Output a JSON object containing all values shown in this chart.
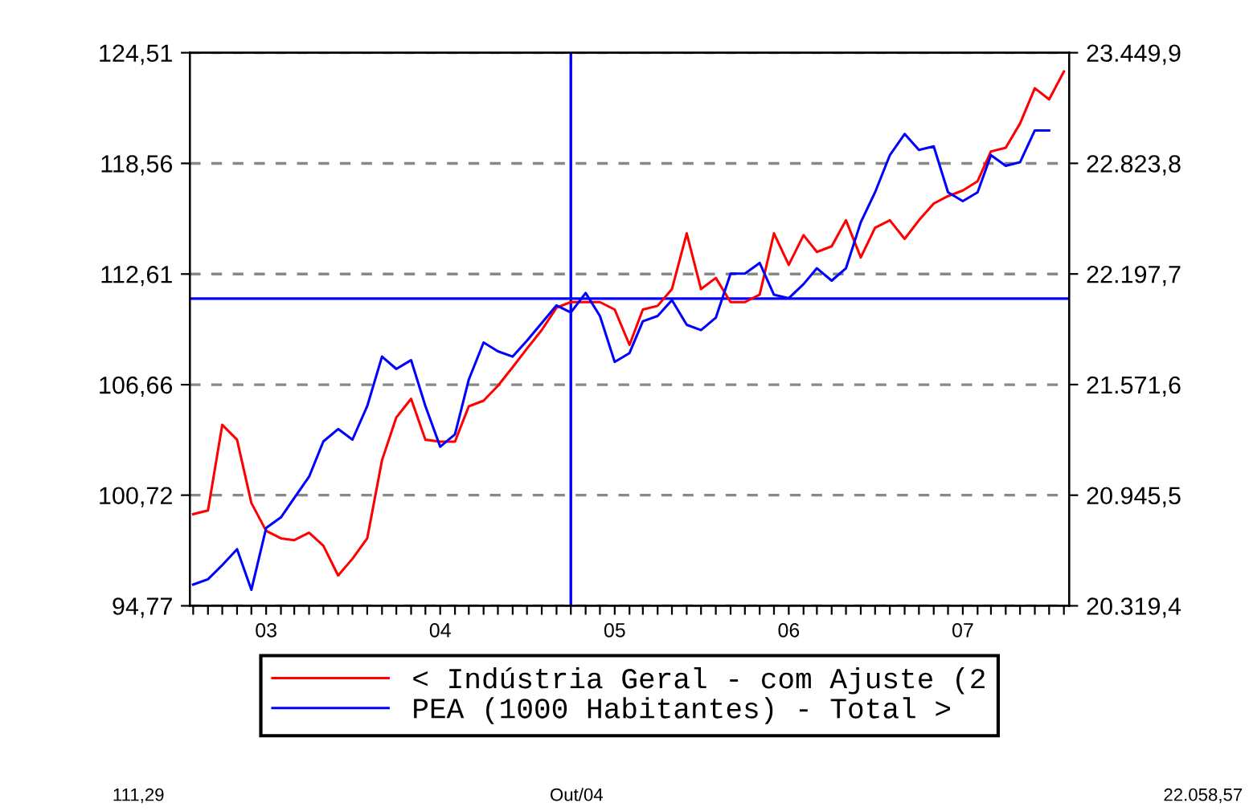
{
  "chart_data": {
    "type": "line",
    "x": [
      "2002-08",
      "2002-09",
      "2002-10",
      "2002-11",
      "2002-12",
      "2003-01",
      "2003-02",
      "2003-03",
      "2003-04",
      "2003-05",
      "2003-06",
      "2003-07",
      "2003-08",
      "2003-09",
      "2003-10",
      "2003-11",
      "2003-12",
      "2004-01",
      "2004-02",
      "2004-03",
      "2004-04",
      "2004-05",
      "2004-06",
      "2004-07",
      "2004-08",
      "2004-09",
      "2004-10",
      "2004-11",
      "2004-12",
      "2005-01",
      "2005-02",
      "2005-03",
      "2005-04",
      "2005-05",
      "2005-06",
      "2005-07",
      "2005-08",
      "2005-09",
      "2005-10",
      "2005-11",
      "2005-12",
      "2006-01",
      "2006-02",
      "2006-03",
      "2006-04",
      "2006-05",
      "2006-06",
      "2006-07",
      "2006-08",
      "2006-09",
      "2006-10",
      "2006-11",
      "2006-12",
      "2007-01",
      "2007-02",
      "2007-03",
      "2007-04",
      "2007-05",
      "2007-06",
      "2007-07",
      "2007-08"
    ],
    "series": [
      {
        "name": "< Indústria Geral - com Ajuste (2",
        "color": "#ff0000",
        "values": [
          99.7,
          99.9,
          104.5,
          103.7,
          100.3,
          98.8,
          98.4,
          98.3,
          98.7,
          98.0,
          96.4,
          97.3,
          98.4,
          102.6,
          104.9,
          105.9,
          103.7,
          103.6,
          103.6,
          105.5,
          105.8,
          106.6,
          107.6,
          108.6,
          109.6,
          110.8,
          111.1,
          111.1,
          111.1,
          110.7,
          108.8,
          110.7,
          110.9,
          111.8,
          114.8,
          111.8,
          112.4,
          111.1,
          111.1,
          111.5,
          114.8,
          113.1,
          114.7,
          113.8,
          114.1,
          115.5,
          113.5,
          115.1,
          115.5,
          114.5,
          115.5,
          116.4,
          116.8,
          117.1,
          117.6,
          119.2,
          119.4,
          120.7,
          122.6,
          122.0,
          123.5
        ]
      },
      {
        "name": "PEA (1000 Habitantes) - Total >",
        "color": "#0000ff",
        "axis": "y2",
        "values": [
          20440,
          20470,
          20550,
          20640,
          20410,
          20760,
          20820,
          20930,
          21050,
          21250,
          21320,
          21260,
          21450,
          21730,
          21660,
          21710,
          21450,
          21220,
          21290,
          21600,
          21810,
          21760,
          21730,
          21820,
          21920,
          22020,
          21980,
          22090,
          21960,
          21700,
          21750,
          21930,
          21960,
          22050,
          21910,
          21880,
          21950,
          22200,
          22200,
          22260,
          22080,
          22060,
          22140,
          22230,
          22160,
          22230,
          22490,
          22660,
          22870,
          22990,
          22900,
          22920,
          22660,
          22610,
          22660,
          22870,
          22810,
          22830,
          23010,
          23010,
          null
        ]
      }
    ],
    "xlim": [
      "2002-07-25",
      "2007-08-12"
    ],
    "xticks": [
      {
        "value": "2002-08",
        "label": null
      },
      {
        "value": "2002-09",
        "label": null
      },
      {
        "value": "2002-10",
        "label": null
      },
      {
        "value": "2002-11",
        "label": null
      },
      {
        "value": "2002-12",
        "label": null
      },
      {
        "value": "2003-01",
        "label": "03"
      },
      {
        "value": "2003-02",
        "label": null
      },
      {
        "value": "2003-03",
        "label": null
      },
      {
        "value": "2003-04",
        "label": null
      },
      {
        "value": "2003-05",
        "label": null
      },
      {
        "value": "2003-06",
        "label": null
      },
      {
        "value": "2003-07",
        "label": null
      },
      {
        "value": "2003-08",
        "label": null
      },
      {
        "value": "2003-09",
        "label": null
      },
      {
        "value": "2003-10",
        "label": null
      },
      {
        "value": "2003-11",
        "label": null
      },
      {
        "value": "2003-12",
        "label": null
      },
      {
        "value": "2004-01",
        "label": "04"
      },
      {
        "value": "2004-02",
        "label": null
      },
      {
        "value": "2004-03",
        "label": null
      },
      {
        "value": "2004-04",
        "label": null
      },
      {
        "value": "2004-05",
        "label": null
      },
      {
        "value": "2004-06",
        "label": null
      },
      {
        "value": "2004-07",
        "label": null
      },
      {
        "value": "2004-08",
        "label": null
      },
      {
        "value": "2004-09",
        "label": null
      },
      {
        "value": "2004-10",
        "label": null
      },
      {
        "value": "2004-11",
        "label": null
      },
      {
        "value": "2004-12",
        "label": null
      },
      {
        "value": "2005-01",
        "label": "05"
      },
      {
        "value": "2005-02",
        "label": null
      },
      {
        "value": "2005-03",
        "label": null
      },
      {
        "value": "2005-04",
        "label": null
      },
      {
        "value": "2005-05",
        "label": null
      },
      {
        "value": "2005-06",
        "label": null
      },
      {
        "value": "2005-07",
        "label": null
      },
      {
        "value": "2005-08",
        "label": null
      },
      {
        "value": "2005-09",
        "label": null
      },
      {
        "value": "2005-10",
        "label": null
      },
      {
        "value": "2005-11",
        "label": null
      },
      {
        "value": "2005-12",
        "label": null
      },
      {
        "value": "2006-01",
        "label": "06"
      },
      {
        "value": "2006-02",
        "label": null
      },
      {
        "value": "2006-03",
        "label": null
      },
      {
        "value": "2006-04",
        "label": null
      },
      {
        "value": "2006-05",
        "label": null
      },
      {
        "value": "2006-06",
        "label": null
      },
      {
        "value": "2006-07",
        "label": null
      },
      {
        "value": "2006-08",
        "label": null
      },
      {
        "value": "2006-09",
        "label": null
      },
      {
        "value": "2006-10",
        "label": null
      },
      {
        "value": "2006-11",
        "label": null
      },
      {
        "value": "2006-12",
        "label": null
      },
      {
        "value": "2007-01",
        "label": "07"
      },
      {
        "value": "2007-02",
        "label": null
      },
      {
        "value": "2007-03",
        "label": null
      },
      {
        "value": "2007-04",
        "label": null
      },
      {
        "value": "2007-05",
        "label": null
      },
      {
        "value": "2007-06",
        "label": null
      },
      {
        "value": "2007-07",
        "label": null
      },
      {
        "value": "2007-08",
        "label": null
      }
    ],
    "ylim": [
      94.77,
      124.51
    ],
    "yticks": [
      {
        "value": 94.77,
        "label": "94,77"
      },
      {
        "value": 100.72,
        "label": "100,72"
      },
      {
        "value": 106.66,
        "label": "106,66"
      },
      {
        "value": 112.61,
        "label": "112,61"
      },
      {
        "value": 118.56,
        "label": "118,56"
      },
      {
        "value": 124.51,
        "label": "124,51"
      }
    ],
    "y2lim": [
      20319.4,
      23449.9
    ],
    "y2ticks": [
      {
        "value": 20319.4,
        "label": "20.319,4"
      },
      {
        "value": 20945.5,
        "label": "20.945,5"
      },
      {
        "value": 21571.6,
        "label": "21.571,6"
      },
      {
        "value": 22197.7,
        "label": "22.197,7"
      },
      {
        "value": 22823.8,
        "label": "22.823,8"
      },
      {
        "value": 23449.9,
        "label": "23.449,9"
      }
    ],
    "ref_lines": [
      {
        "axis": "x",
        "value": "2004-10",
        "color": "#0000ff"
      },
      {
        "axis": "y",
        "value": 111.29,
        "color": "#0000ff"
      }
    ],
    "annotations": [
      "111,29",
      "Out/04",
      "22.058,57"
    ],
    "grid": "y",
    "legend": "bottom",
    "line_style": "solid",
    "marker": "none"
  }
}
